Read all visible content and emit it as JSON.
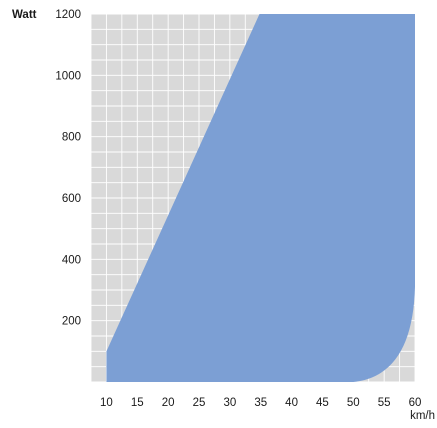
{
  "chart_data": {
    "type": "area",
    "title": "",
    "ylabel": "Watt",
    "xlabel": "km/h",
    "xlim": [
      7.5,
      60
    ],
    "ylim": [
      0,
      1200
    ],
    "x_ticks": [
      10,
      15,
      20,
      25,
      30,
      35,
      40,
      45,
      50,
      55,
      60
    ],
    "y_ticks": [
      200,
      400,
      600,
      800,
      1000,
      1200
    ],
    "grid": true,
    "region_vertices": [
      {
        "x": 10,
        "y": 0
      },
      {
        "x": 10,
        "y": 100
      },
      {
        "x": 34.8,
        "y": 1200
      },
      {
        "x": 60,
        "y": 1200
      },
      {
        "x": 60,
        "y": 310
      },
      {
        "x": 57,
        "y": 80
      },
      {
        "x": 50,
        "y": 0
      }
    ],
    "colors": {
      "background": "#d9d9d9",
      "grid": "#ffffff",
      "fill": "#7c9fd4"
    }
  }
}
